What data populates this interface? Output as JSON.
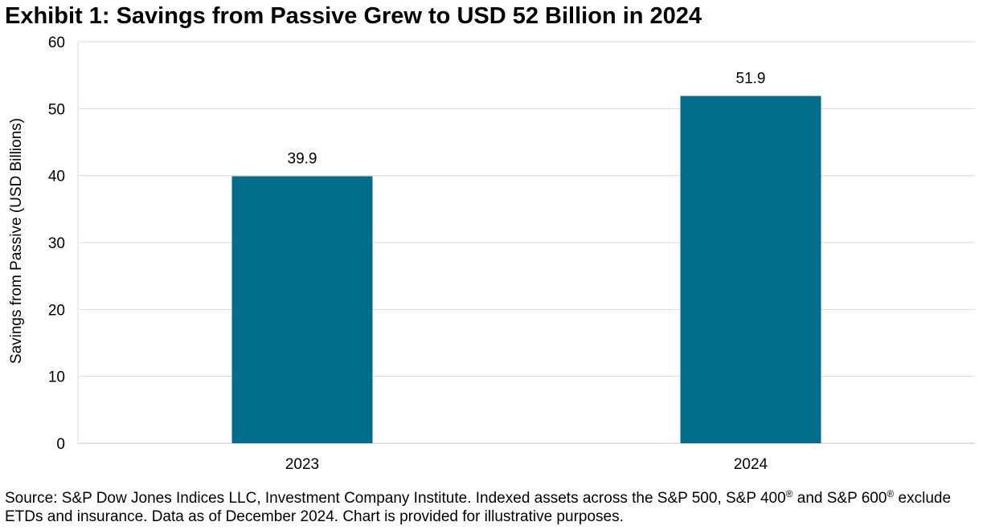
{
  "title": "Exhibit 1: Savings from Passive Grew to USD 52 Billion in 2024",
  "chart_data": {
    "type": "bar",
    "categories": [
      "2023",
      "2024"
    ],
    "values": [
      39.9,
      51.9
    ],
    "data_labels": [
      "39.9",
      "51.9"
    ],
    "title": "Exhibit 1: Savings from Passive Grew to USD 52 Billion in 2024",
    "xlabel": "",
    "ylabel": "Savings from Passive (USD Billions)",
    "ylim": [
      0,
      60
    ],
    "yticks": [
      0,
      10,
      20,
      30,
      40,
      50,
      60
    ],
    "grid": true,
    "bar_color": "#006E8A"
  },
  "source": {
    "part1": "Source: S&P Dow Jones Indices LLC, Investment Company Institute. Indexed assets across the S&P 500, S&P 400",
    "reg1": "®",
    "part2": " and S&P 600",
    "reg2": "®",
    "part3": " exclude ETDs and insurance. Data as of December 2024. Chart is provided for illustrative purposes."
  }
}
